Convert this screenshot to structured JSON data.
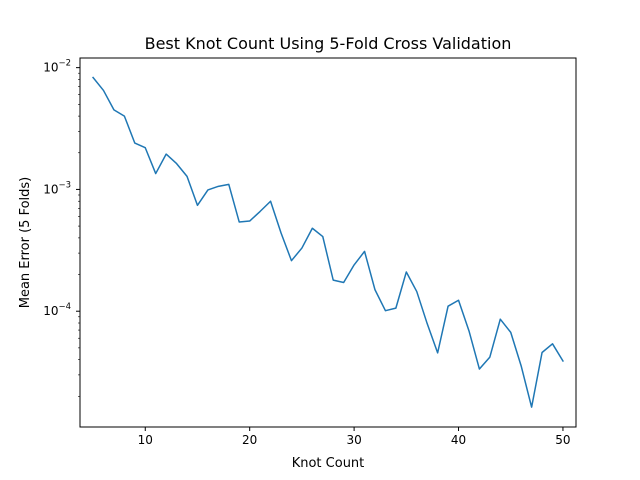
{
  "chart_data": {
    "type": "line",
    "title": "Best Knot Count Using 5-Fold Cross Validation",
    "xlabel": "Knot Count",
    "ylabel": "Mean Error (5 Folds)",
    "xlim": [
      3.75,
      51.25
    ],
    "ylim": [
      1.12e-05,
      0.012
    ],
    "yscale": "log",
    "grid": false,
    "line_color": "#1f77b4",
    "x_ticks": [
      {
        "value": 10,
        "label": "10"
      },
      {
        "value": 20,
        "label": "20"
      },
      {
        "value": 30,
        "label": "30"
      },
      {
        "value": 40,
        "label": "40"
      },
      {
        "value": 50,
        "label": "50"
      }
    ],
    "y_ticks": [
      {
        "value": 0.01,
        "base": "10",
        "exp": "−2"
      },
      {
        "value": 0.001,
        "base": "10",
        "exp": "−3"
      },
      {
        "value": 0.0001,
        "base": "10",
        "exp": "−4"
      }
    ],
    "series": [
      {
        "x": [
          5,
          6,
          7,
          8,
          9,
          10,
          11,
          12,
          13,
          14,
          15,
          16,
          17,
          18,
          19,
          20,
          21,
          22,
          23,
          24,
          25,
          26,
          27,
          28,
          29,
          30,
          31,
          32,
          33,
          34,
          35,
          36,
          37,
          38,
          39,
          40,
          41,
          42,
          43,
          44,
          45,
          46,
          47,
          48,
          49,
          50
        ],
        "values": [
          0.0083,
          0.0065,
          0.0045,
          0.004,
          0.0024,
          0.0022,
          0.00135,
          0.00195,
          0.00163,
          0.00128,
          0.00074,
          0.00099,
          0.00106,
          0.0011,
          0.00054,
          0.00055,
          0.00066,
          0.0008,
          0.00044,
          0.00026,
          0.00033,
          0.00048,
          0.00041,
          0.00018,
          0.000172,
          0.00024,
          0.00031,
          0.00015,
          0.000101,
          0.000106,
          0.00021,
          0.000145,
          7.9e-05,
          4.55e-05,
          0.00011,
          0.000123,
          6.9e-05,
          3.35e-05,
          4.2e-05,
          8.6e-05,
          6.7e-05,
          3.55e-05,
          1.63e-05,
          4.58e-05,
          5.4e-05,
          3.9e-05
        ]
      }
    ]
  }
}
